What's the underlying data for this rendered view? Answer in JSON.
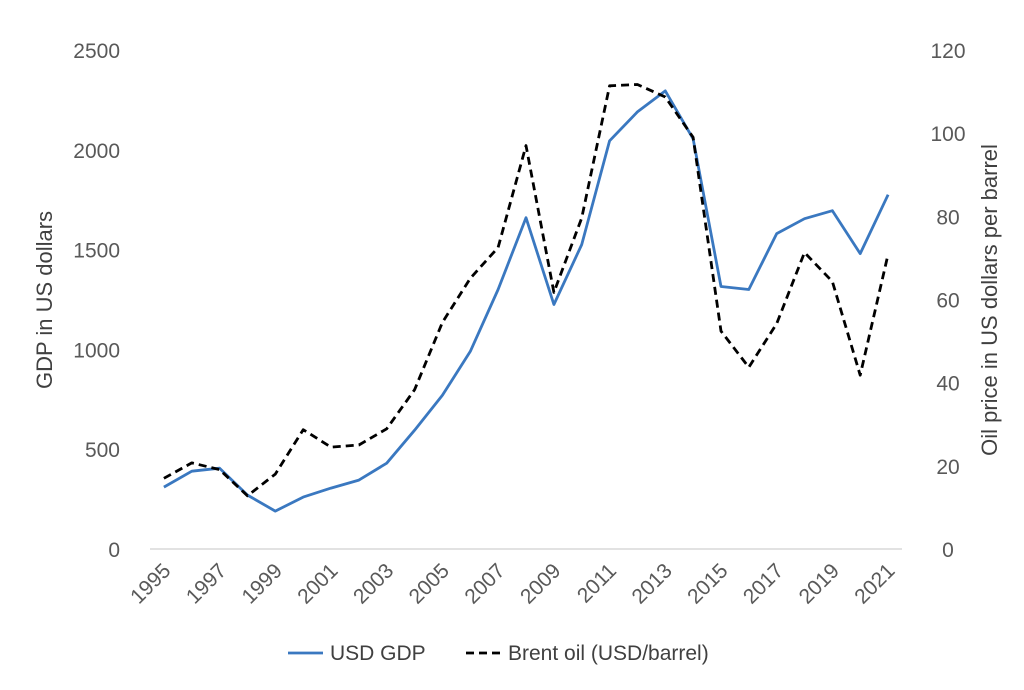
{
  "chart_data": {
    "type": "line",
    "title": "",
    "x": [
      "1995",
      "1996",
      "1997",
      "1998",
      "1999",
      "2000",
      "2001",
      "2002",
      "2003",
      "2004",
      "2005",
      "2006",
      "2007",
      "2008",
      "2009",
      "2010",
      "2011",
      "2012",
      "2013",
      "2014",
      "2015",
      "2016",
      "2017",
      "2018",
      "2019",
      "2020",
      "2021"
    ],
    "x_tick_labels": [
      "1995",
      "1997",
      "1999",
      "2001",
      "2003",
      "2005",
      "2007",
      "2009",
      "2011",
      "2013",
      "2015",
      "2017",
      "2019",
      "2021"
    ],
    "ylabel_left": "GDP in US dollars",
    "ylabel_right": "Oil price in US dollars per barrel",
    "ylim_left": [
      0,
      2500
    ],
    "ylim_right": [
      0,
      120
    ],
    "y_ticks_left": [
      "0",
      "500",
      "1000",
      "1500",
      "2000",
      "2500"
    ],
    "y_ticks_right": [
      "0",
      "20",
      "40",
      "60",
      "80",
      "100",
      "120"
    ],
    "grid": false,
    "legend_position": "bottom",
    "series": [
      {
        "name": "USD GDP",
        "axis": "left",
        "color": "#3a78c0",
        "style": "solid",
        "values": [
          310,
          390,
          405,
          270,
          190,
          260,
          305,
          345,
          430,
          595,
          770,
          990,
          1300,
          1660,
          1225,
          1525,
          2045,
          2190,
          2295,
          2055,
          1315,
          1300,
          1580,
          1655,
          1695,
          1480,
          1775
        ]
      },
      {
        "name": "Brent oil (USD/barrel)",
        "axis": "right",
        "color": "#000000",
        "style": "dashed",
        "values": [
          17.0,
          20.7,
          19.1,
          12.8,
          18.0,
          28.7,
          24.5,
          25.0,
          28.9,
          38.3,
          54.5,
          65.1,
          72.5,
          97.0,
          61.7,
          79.6,
          111.4,
          111.7,
          108.7,
          99.0,
          52.4,
          43.7,
          54.2,
          71.3,
          64.3,
          41.8,
          70.9
        ]
      }
    ]
  }
}
